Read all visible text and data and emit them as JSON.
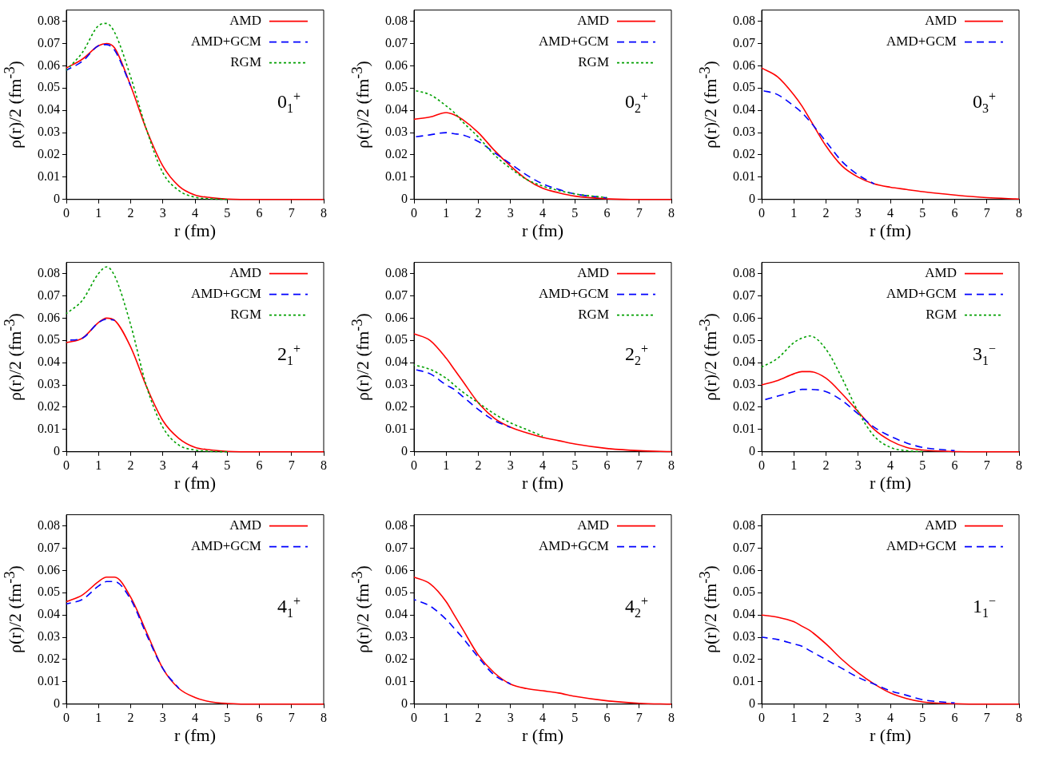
{
  "chart_data": [
    {
      "type": "line",
      "xlabel": "r (fm)",
      "ylabel": "ρ(r)/2  (fm$^{-3}$)",
      "annotations": [
        "0$_{1}$$^{+}$"
      ],
      "legend": "top right",
      "marker": "none",
      "xlim": [
        0,
        8
      ],
      "ylim": [
        0,
        0.085
      ],
      "xticks": [
        0,
        1,
        2,
        3,
        4,
        5,
        6,
        7,
        8
      ],
      "yticks": [
        0,
        0.01,
        0.02,
        0.03,
        0.04,
        0.05,
        0.06,
        0.07,
        0.08
      ],
      "x": [
        0,
        0.5,
        1,
        1.25,
        1.5,
        2,
        2.5,
        3,
        3.5,
        4,
        4.5,
        5,
        6,
        7,
        8
      ],
      "series": [
        {
          "name": "AMD",
          "color": "#ff0000",
          "line_style": "solid",
          "values": [
            0.059,
            0.063,
            0.069,
            0.07,
            0.068,
            0.051,
            0.031,
            0.015,
            0.006,
            0.002,
            0.0008,
            0.0002,
            0,
            0,
            0
          ]
        },
        {
          "name": "AMD+GCM",
          "color": "#0000ff",
          "line_style": "dashed",
          "values": [
            0.058,
            0.062,
            0.069,
            0.0695,
            0.067,
            0.051,
            null,
            null,
            null,
            null,
            null,
            null,
            null,
            null,
            null
          ]
        },
        {
          "name": "RGM",
          "color": "#00a000",
          "line_style": "dotted",
          "values": [
            0.058,
            0.066,
            0.078,
            0.079,
            0.075,
            0.055,
            0.031,
            0.012,
            0.004,
            0.001,
            0.0003,
            0,
            null,
            null,
            null
          ]
        }
      ]
    },
    {
      "type": "line",
      "xlabel": "r (fm)",
      "ylabel": "ρ(r)/2  (fm$^{-3}$)",
      "annotations": [
        "0$_{2}$$^{+}$"
      ],
      "legend": "top right",
      "marker": "none",
      "xlim": [
        0,
        8
      ],
      "ylim": [
        0,
        0.085
      ],
      "xticks": [
        0,
        1,
        2,
        3,
        4,
        5,
        6,
        7,
        8
      ],
      "yticks": [
        0,
        0.01,
        0.02,
        0.03,
        0.04,
        0.05,
        0.06,
        0.07,
        0.08
      ],
      "x": [
        0,
        0.5,
        1,
        1.25,
        1.5,
        2,
        2.5,
        3,
        3.5,
        4,
        4.5,
        5,
        6,
        7,
        8
      ],
      "series": [
        {
          "name": "AMD",
          "color": "#ff0000",
          "line_style": "solid",
          "values": [
            0.036,
            0.037,
            0.039,
            0.038,
            0.036,
            0.03,
            0.022,
            0.015,
            0.009,
            0.005,
            0.003,
            0.0015,
            0.0003,
            0,
            0
          ]
        },
        {
          "name": "AMD+GCM",
          "color": "#0000ff",
          "line_style": "dashed",
          "values": [
            0.028,
            0.029,
            0.03,
            0.0295,
            0.029,
            0.026,
            0.021,
            0.016,
            0.011,
            0.007,
            0.0045,
            0.0025,
            0.0007,
            null,
            null
          ]
        },
        {
          "name": "RGM",
          "color": "#00a000",
          "line_style": "dotted",
          "values": [
            0.049,
            0.047,
            0.042,
            0.039,
            0.035,
            0.028,
            0.02,
            0.014,
            0.009,
            0.006,
            0.004,
            0.0025,
            0.0008,
            null,
            null
          ]
        }
      ]
    },
    {
      "type": "line",
      "xlabel": "r (fm)",
      "ylabel": "ρ(r)/2  (fm$^{-3}$)",
      "annotations": [
        "0$_{3}$$^{+}$"
      ],
      "legend": "top right",
      "marker": "none",
      "xlim": [
        0,
        8
      ],
      "ylim": [
        0,
        0.085
      ],
      "xticks": [
        0,
        1,
        2,
        3,
        4,
        5,
        6,
        7,
        8
      ],
      "yticks": [
        0,
        0.01,
        0.02,
        0.03,
        0.04,
        0.05,
        0.06,
        0.07,
        0.08
      ],
      "x": [
        0,
        0.5,
        1,
        1.25,
        1.5,
        2,
        2.5,
        3,
        3.5,
        4,
        4.5,
        5,
        6,
        7,
        8
      ],
      "series": [
        {
          "name": "AMD",
          "color": "#ff0000",
          "line_style": "solid",
          "values": [
            0.059,
            0.055,
            0.047,
            0.042,
            0.036,
            0.024,
            0.015,
            0.01,
            0.007,
            0.0055,
            0.0045,
            0.0035,
            0.002,
            0.0008,
            0.0002
          ]
        },
        {
          "name": "AMD+GCM",
          "color": "#0000ff",
          "line_style": "dashed",
          "values": [
            0.049,
            0.047,
            0.042,
            0.039,
            0.035,
            0.026,
            0.017,
            0.011,
            0.007,
            null,
            null,
            null,
            null,
            null,
            null
          ]
        }
      ]
    },
    {
      "type": "line",
      "xlabel": "r (fm)",
      "ylabel": "ρ(r)/2  (fm$^{-3}$)",
      "annotations": [
        "2$_{1}$$^{+}$"
      ],
      "legend": "top right",
      "marker": "none",
      "xlim": [
        0,
        8
      ],
      "ylim": [
        0,
        0.085
      ],
      "xticks": [
        0,
        1,
        2,
        3,
        4,
        5,
        6,
        7,
        8
      ],
      "yticks": [
        0,
        0.01,
        0.02,
        0.03,
        0.04,
        0.05,
        0.06,
        0.07,
        0.08
      ],
      "x": [
        0,
        0.5,
        1,
        1.25,
        1.5,
        2,
        2.5,
        3,
        3.5,
        4,
        4.5,
        5,
        6,
        7,
        8
      ],
      "series": [
        {
          "name": "AMD",
          "color": "#ff0000",
          "line_style": "solid",
          "values": [
            0.049,
            0.051,
            0.058,
            0.06,
            0.059,
            0.047,
            0.029,
            0.014,
            0.006,
            0.002,
            0.0008,
            0.0002,
            0,
            0,
            0
          ]
        },
        {
          "name": "AMD+GCM",
          "color": "#0000ff",
          "line_style": "dashed",
          "values": [
            0.05,
            0.051,
            0.058,
            0.0595,
            0.059,
            null,
            null,
            null,
            null,
            null,
            null,
            null,
            null,
            null,
            null
          ]
        },
        {
          "name": "RGM",
          "color": "#00a000",
          "line_style": "dotted",
          "values": [
            0.062,
            0.068,
            0.08,
            0.083,
            0.079,
            0.057,
            0.029,
            0.011,
            0.003,
            0.0008,
            0.0002,
            0,
            null,
            null,
            null
          ]
        }
      ]
    },
    {
      "type": "line",
      "xlabel": "r (fm)",
      "ylabel": "ρ(r)/2  (fm$^{-3}$)",
      "annotations": [
        "2$_{2}$$^{+}$"
      ],
      "legend": "top right",
      "marker": "none",
      "xlim": [
        0,
        8
      ],
      "ylim": [
        0,
        0.085
      ],
      "xticks": [
        0,
        1,
        2,
        3,
        4,
        5,
        6,
        7,
        8
      ],
      "yticks": [
        0,
        0.01,
        0.02,
        0.03,
        0.04,
        0.05,
        0.06,
        0.07,
        0.08
      ],
      "x": [
        0,
        0.5,
        1,
        1.25,
        1.5,
        2,
        2.5,
        3,
        3.5,
        4,
        4.5,
        5,
        6,
        7,
        8
      ],
      "series": [
        {
          "name": "AMD",
          "color": "#ff0000",
          "line_style": "solid",
          "values": [
            0.053,
            0.05,
            0.042,
            0.037,
            0.032,
            0.022,
            0.015,
            0.011,
            0.0085,
            0.0065,
            0.005,
            0.0035,
            0.0015,
            0.0005,
            0.0001
          ]
        },
        {
          "name": "AMD+GCM",
          "color": "#0000ff",
          "line_style": "dashed",
          "values": [
            0.037,
            0.035,
            0.03,
            0.028,
            0.025,
            0.019,
            0.014,
            0.011,
            null,
            null,
            null,
            null,
            null,
            null,
            null
          ]
        },
        {
          "name": "RGM",
          "color": "#00a000",
          "line_style": "dotted",
          "values": [
            0.039,
            0.037,
            0.033,
            0.03,
            0.027,
            0.022,
            0.017,
            0.013,
            0.01,
            0.007,
            null,
            null,
            null,
            null,
            null
          ]
        }
      ]
    },
    {
      "type": "line",
      "xlabel": "r (fm)",
      "ylabel": "ρ(r)/2  (fm$^{-3}$)",
      "annotations": [
        "3$_{1}$$^{−}$"
      ],
      "legend": "top right",
      "marker": "none",
      "xlim": [
        0,
        8
      ],
      "ylim": [
        0,
        0.085
      ],
      "xticks": [
        0,
        1,
        2,
        3,
        4,
        5,
        6,
        7,
        8
      ],
      "yticks": [
        0,
        0.01,
        0.02,
        0.03,
        0.04,
        0.05,
        0.06,
        0.07,
        0.08
      ],
      "x": [
        0,
        0.5,
        1,
        1.25,
        1.5,
        2,
        2.5,
        3,
        3.5,
        4,
        4.5,
        5,
        6,
        7,
        8
      ],
      "series": [
        {
          "name": "AMD",
          "color": "#ff0000",
          "line_style": "solid",
          "values": [
            0.03,
            0.032,
            0.035,
            0.036,
            0.036,
            0.033,
            0.026,
            0.018,
            0.01,
            0.005,
            0.002,
            0.0008,
            0.0001,
            0,
            0
          ]
        },
        {
          "name": "AMD+GCM",
          "color": "#0000ff",
          "line_style": "dashed",
          "values": [
            0.023,
            0.025,
            0.027,
            0.028,
            0.028,
            0.027,
            0.023,
            0.017,
            0.011,
            0.007,
            0.004,
            0.002,
            0.0005,
            null,
            null
          ]
        },
        {
          "name": "RGM",
          "color": "#00a000",
          "line_style": "dotted",
          "values": [
            0.038,
            0.042,
            0.049,
            0.051,
            0.052,
            0.046,
            0.033,
            0.018,
            0.007,
            0.002,
            0.0005,
            0.0001,
            null,
            null,
            null
          ]
        }
      ]
    },
    {
      "type": "line",
      "xlabel": "r (fm)",
      "ylabel": "ρ(r)/2  (fm$^{-3}$)",
      "annotations": [
        "4$_{1}$$^{+}$"
      ],
      "legend": "top right",
      "marker": "none",
      "xlim": [
        0,
        8
      ],
      "ylim": [
        0,
        0.085
      ],
      "xticks": [
        0,
        1,
        2,
        3,
        4,
        5,
        6,
        7,
        8
      ],
      "yticks": [
        0,
        0.01,
        0.02,
        0.03,
        0.04,
        0.05,
        0.06,
        0.07,
        0.08
      ],
      "x": [
        0,
        0.5,
        1,
        1.25,
        1.5,
        2,
        2.5,
        3,
        3.5,
        4,
        4.5,
        5,
        6,
        7,
        8
      ],
      "series": [
        {
          "name": "AMD",
          "color": "#ff0000",
          "line_style": "solid",
          "values": [
            0.046,
            0.049,
            0.055,
            0.057,
            0.057,
            0.048,
            0.032,
            0.016,
            0.007,
            0.003,
            0.001,
            0.0003,
            0,
            0,
            0
          ]
        },
        {
          "name": "AMD+GCM",
          "color": "#0000ff",
          "line_style": "dashed",
          "values": [
            0.045,
            0.047,
            0.053,
            0.055,
            0.055,
            0.047,
            0.031,
            0.016,
            0.007,
            null,
            null,
            null,
            null,
            null,
            null
          ]
        }
      ]
    },
    {
      "type": "line",
      "xlabel": "r (fm)",
      "ylabel": "ρ(r)/2  (fm$^{-3}$)",
      "annotations": [
        "4$_{2}$$^{+}$"
      ],
      "legend": "top right",
      "marker": "none",
      "xlim": [
        0,
        8
      ],
      "ylim": [
        0,
        0.085
      ],
      "xticks": [
        0,
        1,
        2,
        3,
        4,
        5,
        6,
        7,
        8
      ],
      "yticks": [
        0,
        0.01,
        0.02,
        0.03,
        0.04,
        0.05,
        0.06,
        0.07,
        0.08
      ],
      "x": [
        0,
        0.5,
        1,
        1.25,
        1.5,
        2,
        2.5,
        3,
        3.5,
        4,
        4.5,
        5,
        6,
        7,
        8
      ],
      "series": [
        {
          "name": "AMD",
          "color": "#ff0000",
          "line_style": "solid",
          "values": [
            0.057,
            0.054,
            0.046,
            0.04,
            0.034,
            0.022,
            0.014,
            0.009,
            0.007,
            0.006,
            0.005,
            0.0035,
            0.0015,
            0.0004,
            0
          ]
        },
        {
          "name": "AMD+GCM",
          "color": "#0000ff",
          "line_style": "dashed",
          "values": [
            0.047,
            0.044,
            0.038,
            0.034,
            0.03,
            0.021,
            0.013,
            0.009,
            null,
            null,
            null,
            null,
            null,
            null,
            null
          ]
        }
      ]
    },
    {
      "type": "line",
      "xlabel": "r (fm)",
      "ylabel": "ρ(r)/2  (fm$^{-3}$)",
      "annotations": [
        "1$_{1}$$^{−}$"
      ],
      "legend": "top right",
      "marker": "none",
      "xlim": [
        0,
        8
      ],
      "ylim": [
        0,
        0.085
      ],
      "xticks": [
        0,
        1,
        2,
        3,
        4,
        5,
        6,
        7,
        8
      ],
      "yticks": [
        0,
        0.01,
        0.02,
        0.03,
        0.04,
        0.05,
        0.06,
        0.07,
        0.08
      ],
      "x": [
        0,
        0.5,
        1,
        1.25,
        1.5,
        2,
        2.5,
        3,
        3.5,
        4,
        4.5,
        5,
        6,
        7,
        8
      ],
      "series": [
        {
          "name": "AMD",
          "color": "#ff0000",
          "line_style": "solid",
          "values": [
            0.04,
            0.039,
            0.037,
            0.035,
            0.033,
            0.027,
            0.02,
            0.014,
            0.009,
            0.005,
            0.0025,
            0.001,
            0.0002,
            0,
            0
          ]
        },
        {
          "name": "AMD+GCM",
          "color": "#0000ff",
          "line_style": "dashed",
          "values": [
            0.03,
            0.029,
            0.027,
            0.026,
            0.024,
            0.02,
            0.016,
            0.012,
            0.009,
            0.006,
            0.004,
            0.002,
            0.0005,
            null,
            null
          ]
        }
      ]
    }
  ]
}
